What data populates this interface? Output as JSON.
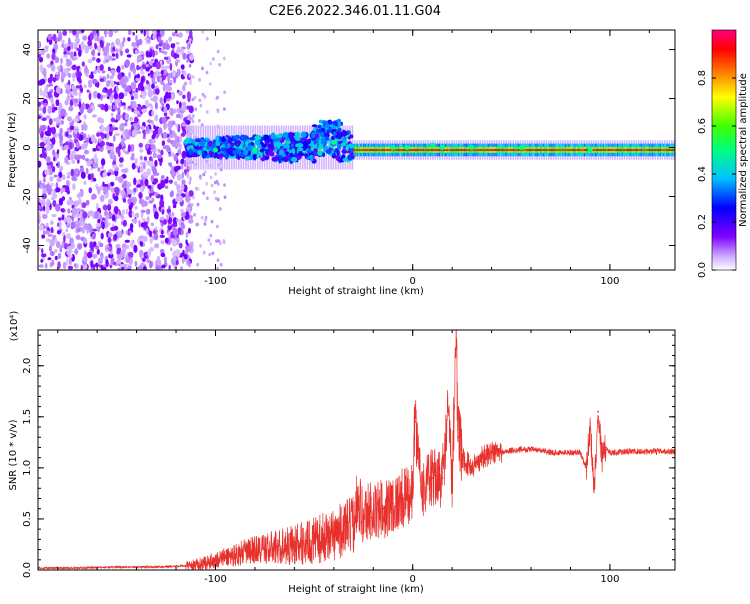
{
  "title": "C2E6.2022.346.01.11.G04",
  "chart_data": [
    {
      "type": "heatmap",
      "xlabel": "Height of straight line (km)",
      "ylabel": "Frequency (Hz)",
      "xlim": [
        -190,
        133
      ],
      "ylim": [
        -50,
        48
      ],
      "x_ticks": [
        "-100",
        "0",
        "100"
      ],
      "y_ticks": [
        "-40",
        "-20",
        "0",
        "20",
        "40"
      ],
      "colorbar": {
        "label": "Normalized spectral amplitude",
        "range": [
          0,
          1
        ],
        "ticks": [
          "0.0",
          "0.2",
          "0.4",
          "0.6",
          "0.8"
        ],
        "colors": [
          "#ffffff",
          "#8000ff",
          "#0000ff",
          "#00c0ff",
          "#00ff80",
          "#40ff00",
          "#ffff00",
          "#ff8000",
          "#ff0000",
          "#ff0080"
        ]
      },
      "regions": [
        {
          "x_range": [
            -190,
            -115
          ],
          "freq_range": [
            -50,
            48
          ],
          "level": 0.15,
          "description_color": "#7a1cf5"
        },
        {
          "x_range": [
            -115,
            -30
          ],
          "freq_center": 0,
          "freq_halfwidth": 6,
          "level": 0.4
        },
        {
          "x_range": [
            -30,
            133
          ],
          "freq_center": -1,
          "freq_halfwidth": 2,
          "level": 0.85
        }
      ],
      "grid": false
    },
    {
      "type": "line",
      "xlabel": "Height of straight line (km)",
      "ylabel": "SNR (10 * v/v)",
      "ylabel_multiplier": "(x10⁴)",
      "xlim": [
        -190,
        133
      ],
      "ylim": [
        0,
        2.35
      ],
      "x_ticks": [
        "-100",
        "0",
        "100"
      ],
      "y_ticks": [
        "0.0",
        "0.5",
        "1.0",
        "1.5",
        "2.0"
      ],
      "color": "#e8312d",
      "x": [
        -190,
        -170,
        -150,
        -130,
        -115,
        -105,
        -100,
        -90,
        -80,
        -70,
        -60,
        -50,
        -45,
        -40,
        -35,
        -30,
        -28,
        -25,
        -22,
        -20,
        -15,
        -10,
        -5,
        0,
        1,
        5,
        10,
        15,
        18,
        20,
        22,
        23,
        25,
        30,
        35,
        40,
        45,
        50,
        55,
        60,
        65,
        70,
        75,
        80,
        85,
        88,
        90,
        92,
        94,
        96,
        98,
        100,
        110,
        120,
        133
      ],
      "y": [
        0.02,
        0.02,
        0.03,
        0.03,
        0.04,
        0.07,
        0.1,
        0.15,
        0.2,
        0.22,
        0.25,
        0.28,
        0.32,
        0.35,
        0.4,
        0.45,
        0.75,
        0.5,
        0.6,
        0.55,
        0.6,
        0.65,
        0.7,
        0.75,
        1.45,
        0.8,
        0.9,
        0.9,
        1.55,
        0.9,
        2.35,
        1.3,
        1.1,
        1.0,
        1.1,
        1.15,
        1.15,
        1.17,
        1.18,
        1.18,
        1.17,
        1.15,
        1.15,
        1.15,
        1.15,
        1.0,
        1.4,
        0.8,
        1.55,
        1.1,
        1.2,
        1.15,
        1.16,
        1.16,
        1.16
      ]
    }
  ]
}
